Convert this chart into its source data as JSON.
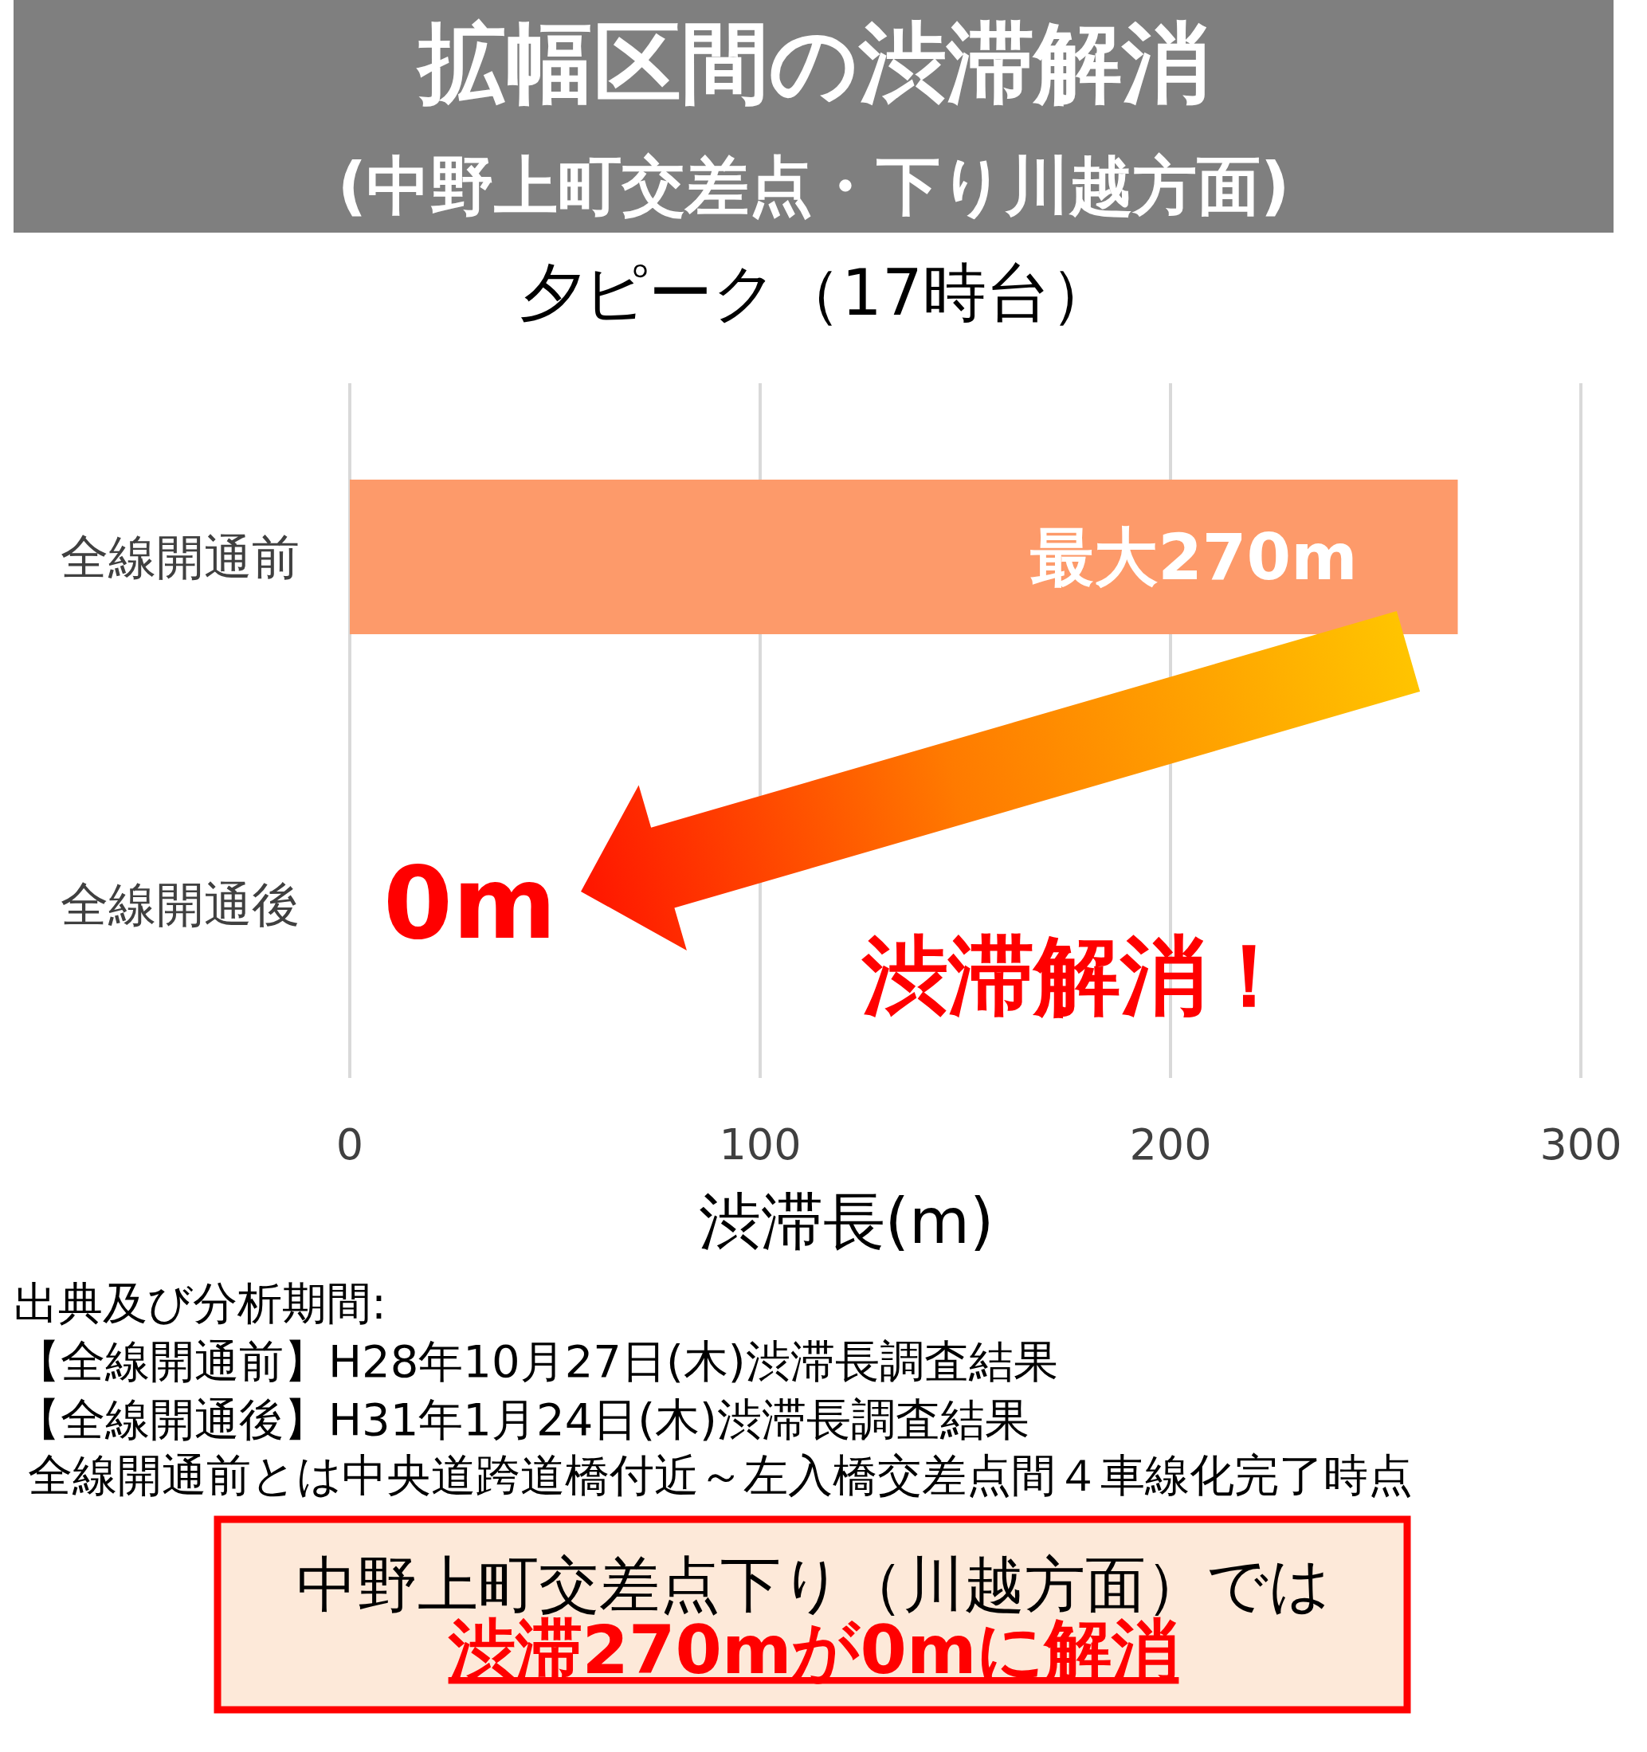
{
  "chart_data": {
    "type": "bar",
    "orientation": "horizontal",
    "title": "拡幅区間の渋滞解消",
    "subtitle": "(中野上町交差点・下り川越方面)",
    "categories": [
      "全線開通前",
      "全線開通後"
    ],
    "values": [
      270,
      0
    ],
    "color": "#fd9a6a",
    "value_labels": [
      "最大270m",
      "0m"
    ],
    "xlabel": "渋滞長(m)",
    "xlim": [
      0,
      300
    ],
    "xticks": [
      0,
      100,
      200,
      300
    ],
    "grid": "x",
    "annotations": [
      "夕ピーク（17時台）",
      "渋滞解消！",
      "出典及び分析期間:",
      "【全線開通前】H28年10月27日(木)渋滞長調査結果",
      "【全線開通後】H31年1月24日(木)渋滞長調査結果",
      "全線開通前とは中央道跨道橋付近～左入橋交差点間４車線化完了時点",
      "中野上町交差点下り（川越方面）では",
      "渋滞270mが0mに解消"
    ]
  }
}
